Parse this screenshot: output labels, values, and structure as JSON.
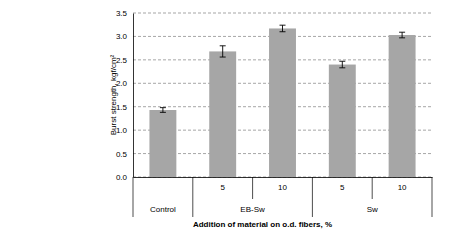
{
  "chart_data": {
    "type": "bar",
    "y_label": "Burst strength, kgf/cm²",
    "x_label": "Addition of material on o.d. fibers, %",
    "categories": [
      null,
      "5",
      "10",
      "5",
      "10"
    ],
    "groups": [
      "Control",
      "EB-Sw",
      "EB-Sw",
      "Sw",
      "Sw"
    ],
    "values": [
      1.43,
      2.68,
      3.17,
      2.4,
      3.03
    ],
    "errors": [
      0.05,
      0.12,
      0.07,
      0.07,
      0.06
    ],
    "color": "#a6a6a6",
    "ylim": [
      0,
      3.5
    ],
    "yticks": [
      {
        "value": 0,
        "label": "0.0"
      },
      {
        "value": 0.5,
        "label": "0.5"
      },
      {
        "value": 1,
        "label": "1.0"
      },
      {
        "value": 1.5,
        "label": "1.5"
      },
      {
        "value": 2,
        "label": "2.0"
      },
      {
        "value": 2.5,
        "label": "2.5"
      },
      {
        "value": 3,
        "label": "3.0"
      },
      {
        "value": 3.5,
        "label": "3.5"
      }
    ],
    "grid": true
  }
}
